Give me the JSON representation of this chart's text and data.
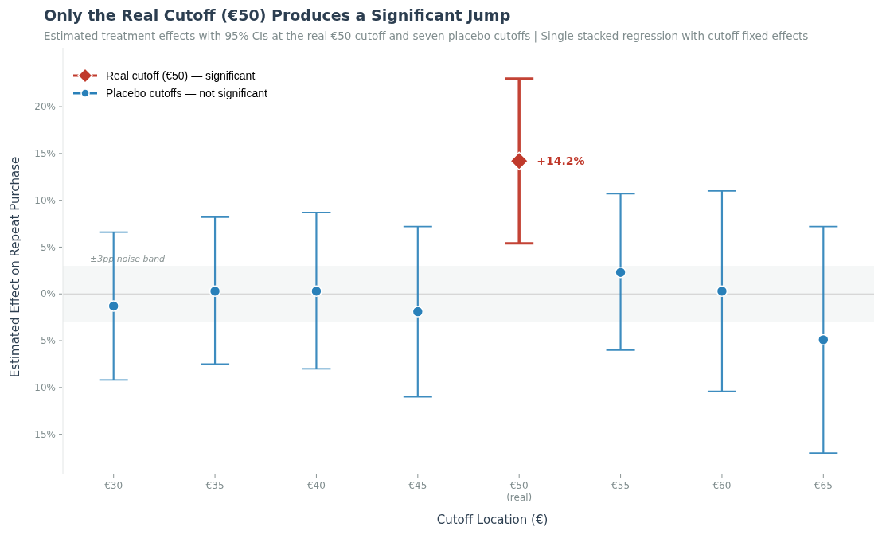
{
  "chart_data": {
    "type": "scatter",
    "title": "Only the Real Cutoff (€50) Produces a Significant Jump",
    "subtitle": "Estimated treatment effects with 95% CIs at the real €50 cutoff and seven placebo cutoffs | Single stacked regression with cutoff fixed effects",
    "xlabel": "Cutoff Location (€)",
    "ylabel": "Estimated Effect on Repeat Purchase",
    "categories": [
      "€30",
      "€35",
      "€40",
      "€45",
      "€50\n(real)",
      "€55",
      "€60",
      "€65"
    ],
    "series": [
      {
        "name": "Real cutoff (€50) — significant",
        "color": "#c0392b",
        "marker": "diamond",
        "values": [
          null,
          null,
          null,
          null,
          14.2,
          null,
          null,
          null
        ],
        "errors": [
          null,
          null,
          null,
          null,
          [
            5.4,
            23.0
          ],
          null,
          null,
          null
        ],
        "value_labels": [
          null,
          null,
          null,
          null,
          "+14.2%",
          null,
          null,
          null
        ]
      },
      {
        "name": "Placebo cutoffs — not significant",
        "color": "#2980b9",
        "marker": "circle",
        "values": [
          -1.3,
          0.3,
          0.3,
          -1.9,
          null,
          2.3,
          0.3,
          -4.9
        ],
        "errors": [
          [
            -9.2,
            6.6
          ],
          [
            -7.5,
            8.2
          ],
          [
            -8.0,
            8.7
          ],
          [
            -11.0,
            7.2
          ],
          null,
          [
            -6.0,
            10.7
          ],
          [
            -10.4,
            11.0
          ],
          [
            -17.0,
            7.2
          ]
        ]
      }
    ],
    "ylim": [
      -19.2,
      26.3
    ],
    "yticks": [
      {
        "value": -15,
        "label": "-15%"
      },
      {
        "value": -10,
        "label": "-10%"
      },
      {
        "value": -5,
        "label": "-5%"
      },
      {
        "value": 0,
        "label": "0%"
      },
      {
        "value": 5,
        "label": "5%"
      },
      {
        "value": 10,
        "label": "10%"
      },
      {
        "value": 15,
        "label": "15%"
      },
      {
        "value": 20,
        "label": "20%"
      }
    ],
    "ref_lines": [
      {
        "axis": "y",
        "value": 0,
        "color": "#cccccc"
      }
    ],
    "bands": [
      {
        "axis": "y",
        "from": -3,
        "to": 3,
        "label": "±3pp noise band",
        "color": "#f5f7f7"
      }
    ],
    "legend": "top left",
    "grid": false
  }
}
